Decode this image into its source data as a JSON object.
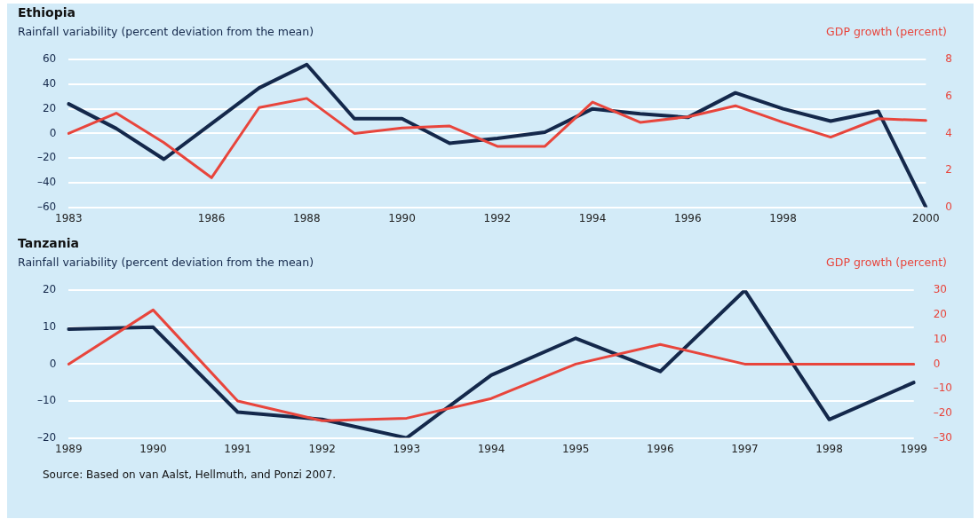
{
  "chart_data": [
    {
      "type": "line",
      "title": "Ethiopia",
      "ylabel": "Rainfall variability (percent deviation from the mean)",
      "y2label": "GDP growth (percent)",
      "categories": [
        "1983",
        null,
        null,
        "1986",
        null,
        "1988",
        null,
        "1990",
        null,
        "1992",
        null,
        "1994",
        null,
        "1996",
        null,
        "1998",
        null,
        null,
        "2000"
      ],
      "series": [
        {
          "type": "line",
          "color": "#14284b",
          "values": [
            24,
            4,
            -21,
            8,
            37,
            56,
            12,
            12,
            -8,
            -4,
            1,
            20,
            16,
            13,
            33,
            20,
            10,
            18,
            -60
          ]
        },
        {
          "type": "line",
          "color": "#e8453c",
          "axis": "y2",
          "values": [
            4.0,
            5.1,
            3.5,
            1.6,
            5.4,
            5.9,
            4.0,
            4.3,
            4.4,
            3.3,
            3.3,
            5.7,
            4.6,
            4.9,
            5.5,
            4.6,
            3.8,
            4.8,
            4.7
          ]
        }
      ],
      "ylim": [
        -60,
        60
      ],
      "yticks": [
        {
          "value": -60,
          "label": "–60"
        },
        {
          "value": -40,
          "label": "–40"
        },
        {
          "value": -20,
          "label": "–20"
        },
        0,
        20,
        40,
        60
      ],
      "y2lim": [
        0,
        8
      ],
      "y2ticks": [
        0,
        2,
        4,
        6,
        8
      ],
      "grid": "y",
      "legend": false
    },
    {
      "type": "line",
      "title": "Tanzania",
      "ylabel": "Rainfall variability (percent deviation from the mean)",
      "y2label": "GDP growth (percent)",
      "categories": [
        "1989",
        "1990",
        "1991",
        "1992",
        "1993",
        "1994",
        "1995",
        "1996",
        "1997",
        "1998",
        "1999"
      ],
      "series": [
        {
          "type": "line",
          "color": "#14284b",
          "values": [
            9.5,
            10,
            -13,
            -15,
            -20,
            -3,
            7,
            -2,
            20,
            -15,
            -5
          ]
        },
        {
          "type": "line",
          "color": "#e8453c",
          "axis": "y2",
          "values": [
            0,
            22,
            -15,
            -23,
            -22,
            -14,
            0,
            8,
            0,
            0,
            0
          ]
        }
      ],
      "ylim": [
        -20,
        20
      ],
      "yticks": [
        {
          "value": -20,
          "label": "–20"
        },
        {
          "value": -10,
          "label": "–10"
        },
        0,
        10,
        20
      ],
      "y2lim": [
        -30,
        30
      ],
      "y2ticks": [
        {
          "value": -30,
          "label": "–30"
        },
        {
          "value": -20,
          "label": "–20"
        },
        {
          "value": -10,
          "label": "–10"
        },
        0,
        10,
        20,
        30
      ],
      "grid": "y",
      "legend": false,
      "annotations": [
        "Source: Based on van Aalst, Hellmuth, and Ponzi 2007."
      ]
    }
  ]
}
